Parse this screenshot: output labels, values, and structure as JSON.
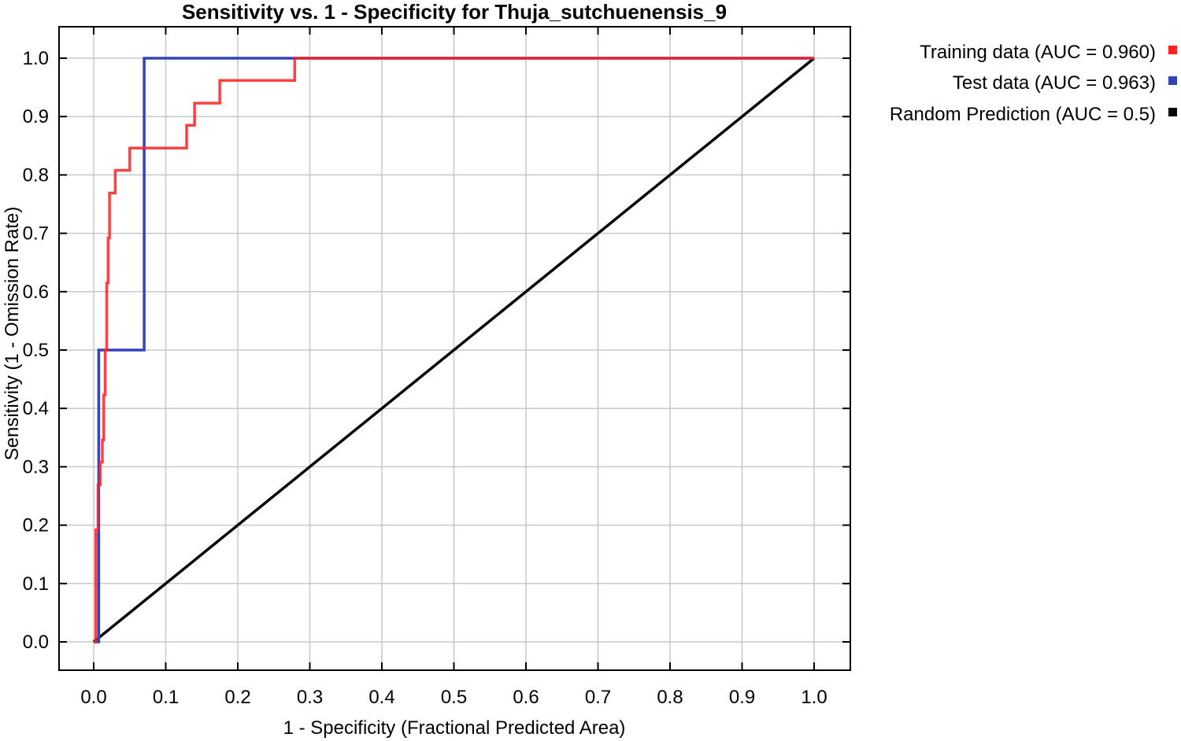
{
  "chart_data": {
    "type": "line",
    "title": "Sensitivity vs. 1 - Specificity for Thuja_sutchuenensis_9",
    "xlabel": "1 - Specificity  (Fractional Predicted Area)",
    "ylabel": "Sensitivity  (1 - Omission Rate)",
    "xlim": [
      0.0,
      1.0
    ],
    "ylim": [
      0.0,
      1.0
    ],
    "xticks": [
      "0.0",
      "0.1",
      "0.2",
      "0.3",
      "0.4",
      "0.5",
      "0.6",
      "0.7",
      "0.8",
      "0.9",
      "1.0"
    ],
    "yticks": [
      "0.0",
      "0.1",
      "0.2",
      "0.3",
      "0.4",
      "0.5",
      "0.6",
      "0.7",
      "0.8",
      "0.9",
      "1.0"
    ],
    "grid": true,
    "legend_position": "top-right-outside",
    "series": [
      {
        "name": "Training data (AUC = 0.960)",
        "color": "#ff2020",
        "x": [
          0.0,
          0.003,
          0.003,
          0.006,
          0.006,
          0.009,
          0.009,
          0.012,
          0.012,
          0.014,
          0.014,
          0.016,
          0.016,
          0.018,
          0.018,
          0.02,
          0.02,
          0.022,
          0.022,
          0.03,
          0.03,
          0.04,
          0.04,
          0.05,
          0.05,
          0.129,
          0.129,
          0.14,
          0.14,
          0.175,
          0.175,
          0.279,
          0.279,
          1.0
        ],
        "y": [
          0.0,
          0.0,
          0.192,
          0.192,
          0.269,
          0.269,
          0.308,
          0.308,
          0.346,
          0.346,
          0.423,
          0.423,
          0.5,
          0.5,
          0.615,
          0.615,
          0.692,
          0.692,
          0.769,
          0.769,
          0.808,
          0.808,
          0.808,
          0.808,
          0.846,
          0.846,
          0.885,
          0.885,
          0.923,
          0.923,
          0.962,
          0.962,
          1.0,
          1.0
        ]
      },
      {
        "name": "Test data (AUC = 0.963)",
        "color": "#3344bb",
        "x": [
          0.0,
          0.007,
          0.007,
          0.07,
          0.07,
          1.0
        ],
        "y": [
          0.0,
          0.0,
          0.5,
          0.5,
          1.0,
          1.0
        ]
      },
      {
        "name": "Random Prediction (AUC = 0.5)",
        "color": "#000000",
        "x": [
          0.0,
          1.0
        ],
        "y": [
          0.0,
          1.0
        ]
      }
    ]
  }
}
